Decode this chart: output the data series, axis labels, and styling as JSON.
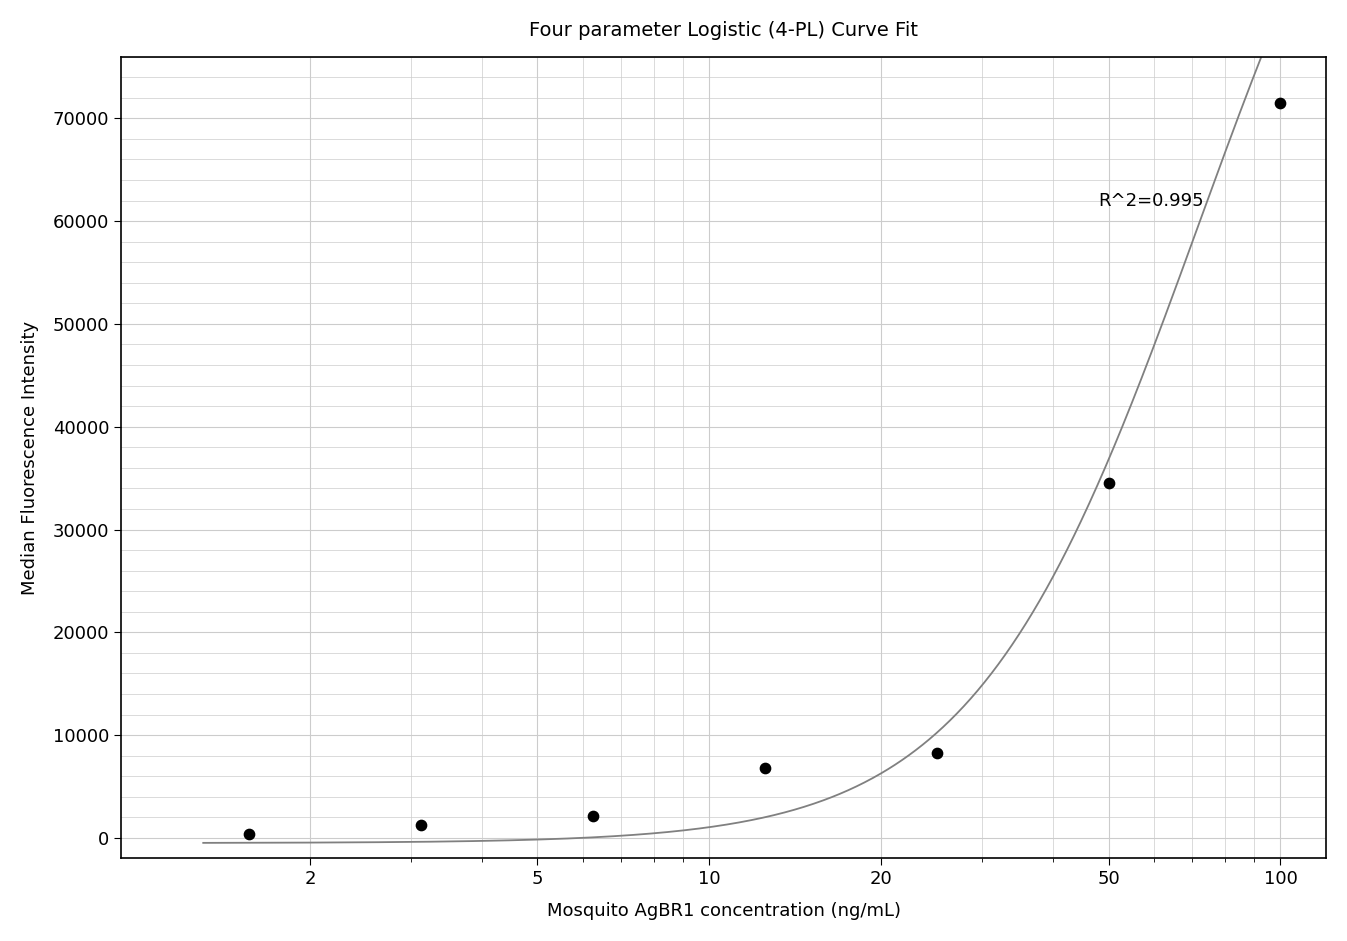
{
  "title": "Four parameter Logistic (4-PL) Curve Fit",
  "xlabel": "Mosquito AgBR1 concentration (ng/mL)",
  "ylabel": "Median Fluorescence Intensity",
  "r_squared_text": "R^2=0.995",
  "r_squared_x": 48,
  "r_squared_y": 62000,
  "scatter_x": [
    1.5625,
    3.125,
    6.25,
    12.5,
    25,
    50,
    100
  ],
  "scatter_y": [
    350,
    1300,
    2100,
    6800,
    8300,
    34500,
    71500
  ],
  "xlim_log": [
    -0.03,
    2.08
  ],
  "ylim": [
    -2000,
    76000
  ],
  "yticks": [
    0,
    10000,
    20000,
    30000,
    40000,
    50000,
    60000,
    70000
  ],
  "xticks": [
    2,
    5,
    10,
    20,
    50,
    100
  ],
  "curve_color": "#808080",
  "scatter_color": "#000000",
  "grid_color": "#cccccc",
  "background_color": "#ffffff",
  "title_fontsize": 14,
  "label_fontsize": 13,
  "tick_fontsize": 13,
  "annotation_fontsize": 13,
  "4pl_A": -500,
  "4pl_B": 2.2,
  "4pl_C": 72,
  "4pl_D": 120000
}
